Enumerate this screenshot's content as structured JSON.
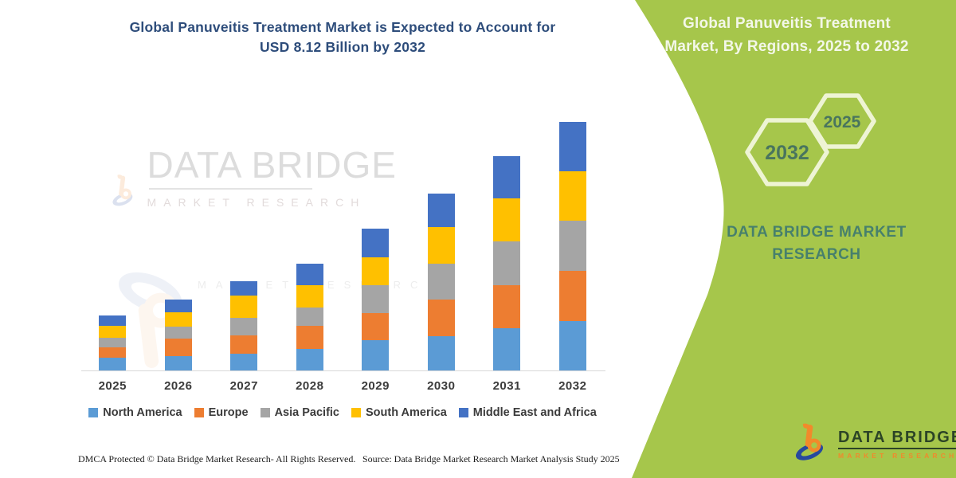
{
  "page": {
    "title_lines": [
      "Global Panuveitis Treatment Market is Expected to Account for",
      "USD 8.12 Billion by 2032"
    ]
  },
  "right_panel": {
    "bg_color": "#a6c64b",
    "title_lines": [
      "Global Panuveitis Treatment",
      "Market, By Regions, 2025 to 2032"
    ],
    "hexagons": [
      {
        "label": "2032"
      },
      {
        "label": "2025"
      }
    ],
    "brand_lines": [
      "DATA BRIDGE MARKET",
      "RESEARCH"
    ],
    "logo": {
      "name": "DATA BRIDGE",
      "subname": "MARKET RESEARCH"
    }
  },
  "watermark": {
    "name": "DATA BRIDGE",
    "subname": "MARKET RESEARCH"
  },
  "footer": {
    "left": "DMCA Protected © Data Bridge Market Research-  All Rights Reserved.",
    "right": "Source: Data Bridge Market Research  Market Analysis Study 2025"
  },
  "chart_data": {
    "type": "bar",
    "stacked": true,
    "title": "Global Panuveitis Treatment Market is Expected to Account for USD 8.12 Billion by 2032",
    "unit": "USD Billion",
    "categories": [
      "2025",
      "2026",
      "2027",
      "2028",
      "2029",
      "2030",
      "2031",
      "2032"
    ],
    "series": [
      {
        "name": "North America",
        "color": "#5B9BD5",
        "values": [
          0.41,
          0.46,
          0.55,
          0.71,
          0.98,
          1.13,
          1.37,
          1.61
        ]
      },
      {
        "name": "Europe",
        "color": "#ED7D31",
        "values": [
          0.36,
          0.57,
          0.61,
          0.74,
          0.91,
          1.18,
          1.42,
          1.65
        ]
      },
      {
        "name": "Asia Pacific",
        "color": "#A5A5A5",
        "values": [
          0.31,
          0.39,
          0.57,
          0.61,
          0.91,
          1.19,
          1.44,
          1.64
        ]
      },
      {
        "name": "South America",
        "color": "#FFC000",
        "values": [
          0.38,
          0.48,
          0.73,
          0.74,
          0.91,
          1.18,
          1.39,
          1.6
        ]
      },
      {
        "name": "Middle East and Africa",
        "color": "#4472C4",
        "values": [
          0.33,
          0.43,
          0.47,
          0.7,
          0.92,
          1.1,
          1.38,
          1.62
        ]
      }
    ],
    "totals": [
      1.79,
      2.33,
      2.93,
      3.5,
      4.63,
      5.78,
      7.0,
      8.12
    ],
    "ylim": [
      0,
      8.5
    ],
    "grid": false,
    "legend_position": "bottom",
    "xlabel": "",
    "ylabel": ""
  }
}
